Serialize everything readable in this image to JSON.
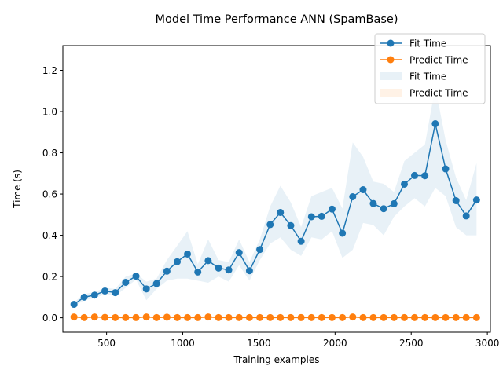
{
  "chart_data": {
    "type": "line",
    "title": "Model Time Performance ANN (SpamBase)",
    "xlabel": "Training examples",
    "ylabel": "Time (s)",
    "xlim": [
      213,
      3020
    ],
    "ylim": [
      -0.07,
      1.32
    ],
    "xticks": [
      500,
      1000,
      1500,
      2000,
      2500,
      3000
    ],
    "yticks": [
      0.0,
      0.2,
      0.4,
      0.6,
      0.8,
      1.0,
      1.2
    ],
    "xtick_labels": [
      "500",
      "1000",
      "1500",
      "2000",
      "2500",
      "3000"
    ],
    "ytick_labels": [
      "0.0",
      "0.2",
      "0.4",
      "0.6",
      "0.8",
      "1.0",
      "1.2"
    ],
    "grid": false,
    "legend_position": "top-right",
    "x": [
      286,
      353,
      421,
      489,
      557,
      625,
      693,
      761,
      828,
      896,
      964,
      1031,
      1099,
      1167,
      1235,
      1302,
      1370,
      1438,
      1506,
      1574,
      1641,
      1709,
      1777,
      1845,
      1912,
      1980,
      2048,
      2116,
      2184,
      2251,
      2319,
      2387,
      2455,
      2522,
      2590,
      2658,
      2726,
      2794,
      2861,
      2929
    ],
    "series": [
      {
        "name": "Fit Time",
        "color": "#1f77b4",
        "values": [
          0.065,
          0.1,
          0.11,
          0.13,
          0.122,
          0.172,
          0.202,
          0.14,
          0.166,
          0.226,
          0.272,
          0.309,
          0.222,
          0.277,
          0.241,
          0.232,
          0.316,
          0.228,
          0.331,
          0.452,
          0.511,
          0.447,
          0.371,
          0.49,
          0.492,
          0.527,
          0.41,
          0.587,
          0.621,
          0.554,
          0.529,
          0.553,
          0.648,
          0.69,
          0.689,
          0.941,
          0.722,
          0.568,
          0.494,
          0.571
        ],
        "band_upper": [
          0.075,
          0.115,
          0.125,
          0.145,
          0.14,
          0.2,
          0.215,
          0.175,
          0.19,
          0.28,
          0.35,
          0.42,
          0.26,
          0.38,
          0.28,
          0.27,
          0.38,
          0.27,
          0.38,
          0.54,
          0.64,
          0.56,
          0.44,
          0.59,
          0.61,
          0.63,
          0.53,
          0.85,
          0.78,
          0.66,
          0.65,
          0.61,
          0.76,
          0.8,
          0.84,
          1.12,
          0.86,
          0.68,
          0.57,
          0.75
        ],
        "band_lower": [
          0.055,
          0.085,
          0.095,
          0.115,
          0.105,
          0.145,
          0.185,
          0.085,
          0.14,
          0.18,
          0.19,
          0.19,
          0.18,
          0.17,
          0.2,
          0.175,
          0.255,
          0.18,
          0.28,
          0.36,
          0.39,
          0.33,
          0.3,
          0.39,
          0.38,
          0.42,
          0.29,
          0.33,
          0.46,
          0.45,
          0.4,
          0.49,
          0.54,
          0.58,
          0.54,
          0.63,
          0.59,
          0.44,
          0.4,
          0.4
        ]
      },
      {
        "name": "Predict Time",
        "color": "#ff7f0e",
        "values": [
          0.004,
          0.001,
          0.004,
          0.002,
          0.001,
          0.001,
          0.001,
          0.004,
          0.001,
          0.003,
          0.001,
          0.001,
          0.001,
          0.004,
          0.001,
          0.001,
          0.001,
          0.001,
          0.001,
          0.001,
          0.001,
          0.001,
          0.001,
          0.001,
          0.001,
          0.001,
          0.001,
          0.004,
          0.001,
          0.001,
          0.001,
          0.001,
          0.001,
          0.001,
          0.001,
          0.001,
          0.001,
          0.001,
          0.001,
          0.001
        ],
        "band_upper": [
          0.01,
          0.003,
          0.008,
          0.005,
          0.003,
          0.003,
          0.003,
          0.008,
          0.003,
          0.007,
          0.003,
          0.003,
          0.003,
          0.008,
          0.003,
          0.003,
          0.003,
          0.003,
          0.003,
          0.003,
          0.003,
          0.003,
          0.003,
          0.003,
          0.003,
          0.003,
          0.003,
          0.008,
          0.003,
          0.003,
          0.003,
          0.003,
          0.003,
          0.003,
          0.003,
          0.003,
          0.003,
          0.003,
          0.003,
          0.003
        ],
        "band_lower": [
          0.0,
          0.0,
          0.0,
          0.0,
          0.0,
          0.0,
          0.0,
          0.0,
          0.0,
          0.0,
          0.0,
          0.0,
          0.0,
          0.0,
          0.0,
          0.0,
          0.0,
          0.0,
          0.0,
          0.0,
          0.0,
          0.0,
          0.0,
          0.0,
          0.0,
          0.0,
          0.0,
          0.0,
          0.0,
          0.0,
          0.0,
          0.0,
          0.0,
          0.0,
          0.0,
          0.0,
          0.0,
          0.0,
          0.0,
          0.0
        ]
      }
    ],
    "legend": [
      {
        "label": "Fit Time",
        "kind": "line",
        "color": "#1f77b4"
      },
      {
        "label": "Predict Time",
        "kind": "line",
        "color": "#ff7f0e"
      },
      {
        "label": "Fit Time",
        "kind": "band",
        "color": "#1f77b4"
      },
      {
        "label": "Predict Time",
        "kind": "band",
        "color": "#ff7f0e"
      }
    ]
  }
}
